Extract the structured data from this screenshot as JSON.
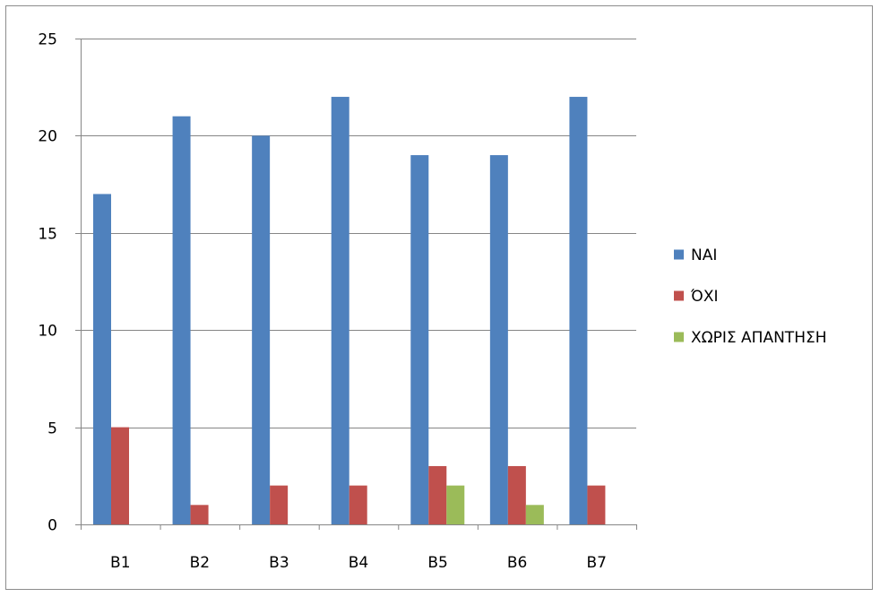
{
  "chart_data": {
    "type": "bar",
    "categories": [
      "B1",
      "B2",
      "B3",
      "B4",
      "B5",
      "B6",
      "B7"
    ],
    "series": [
      {
        "name": "ΝΑΙ",
        "color": "#4f81bd",
        "values": [
          17,
          21,
          20,
          22,
          19,
          19,
          22
        ]
      },
      {
        "name": "ΌΧΙ",
        "color": "#c0504d",
        "values": [
          5,
          1,
          2,
          2,
          3,
          3,
          2
        ]
      },
      {
        "name": "ΧΩΡΙΣ ΑΠΑΝΤΗΣΗ",
        "color": "#9bbb59",
        "values": [
          0,
          0,
          0,
          0,
          2,
          1,
          0
        ]
      }
    ],
    "ylim": [
      0,
      25
    ],
    "yticks": [
      "0",
      "5",
      "10",
      "15",
      "20",
      "25"
    ],
    "grid": true,
    "legend_position": "right"
  }
}
